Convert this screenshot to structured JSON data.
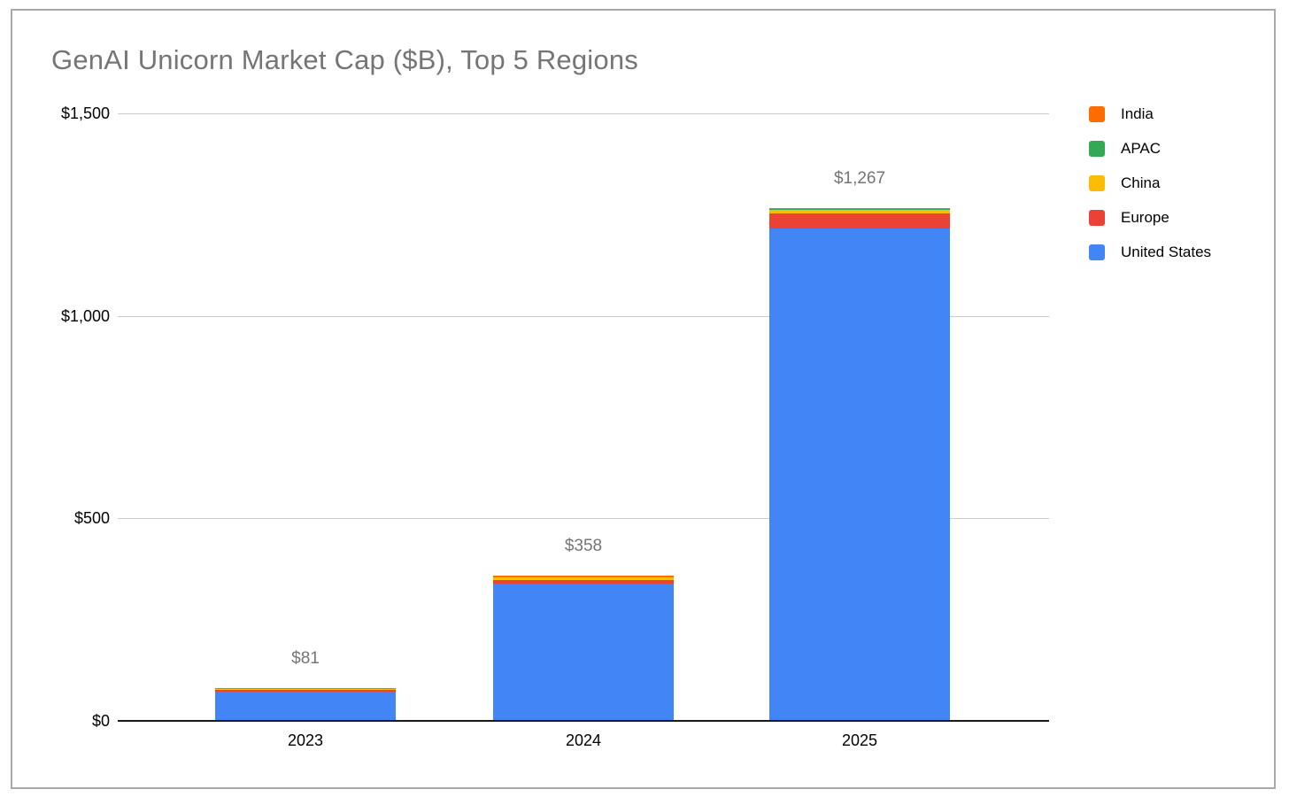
{
  "title": "GenAI Unicorn Market Cap ($B), Top 5 Regions",
  "chart_data": {
    "type": "bar",
    "stacked": true,
    "title": "GenAI Unicorn Market Cap ($B), Top 5 Regions",
    "categories": [
      "2023",
      "2024",
      "2025"
    ],
    "series": [
      {
        "name": "United States",
        "color": "#4285F4",
        "values": [
          73,
          339,
          1215
        ]
      },
      {
        "name": "Europe",
        "color": "#EA4335",
        "values": [
          4,
          9,
          37
        ]
      },
      {
        "name": "China",
        "color": "#FBBC04",
        "values": [
          2,
          6,
          9
        ]
      },
      {
        "name": "APAC",
        "color": "#34A853",
        "values": [
          0,
          0,
          5
        ]
      },
      {
        "name": "India",
        "color": "#FF6D01",
        "values": [
          2,
          4,
          1
        ]
      }
    ],
    "totals": [
      81,
      358,
      1267
    ],
    "total_labels": [
      "$81",
      "$358",
      "$1,267"
    ],
    "xlabel": "",
    "ylabel": "",
    "ylim": [
      0,
      1500
    ],
    "y_tick_values": [
      0,
      500,
      1000,
      1500
    ],
    "y_tick_labels": [
      "$0",
      "$500",
      "$1,000",
      "$1,500"
    ],
    "grid": true,
    "legend_position": "right",
    "legend_order": [
      "India",
      "APAC",
      "China",
      "Europe",
      "United States"
    ]
  },
  "colors": {
    "title_text": "#757575",
    "total_label_text": "#757575",
    "axis_text": "#000000",
    "gridline": "#cccccc",
    "baseline": "#1a1a1a",
    "frame_border": "#a9a9a9",
    "background": "#ffffff"
  }
}
